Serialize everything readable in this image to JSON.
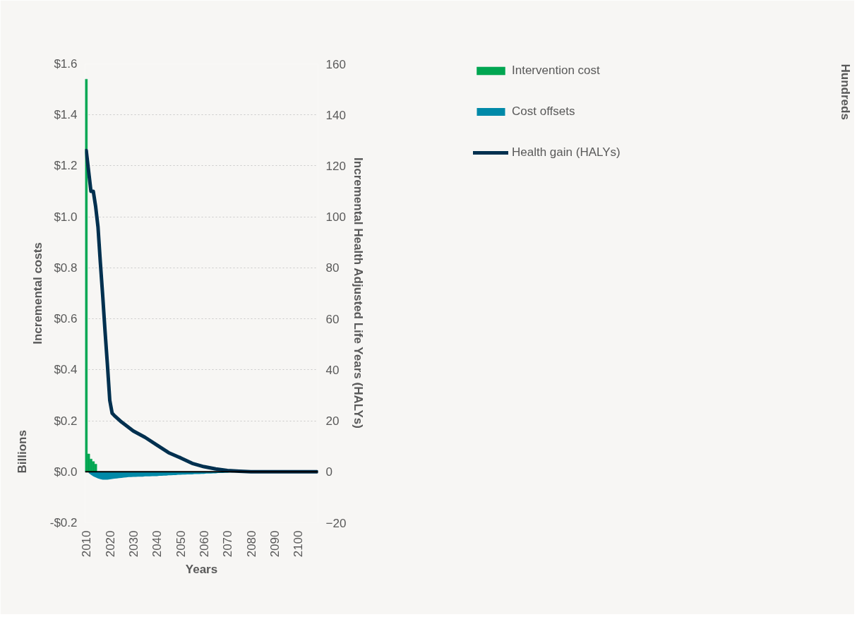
{
  "chart_data": {
    "type": "bar",
    "xlabel": "Years",
    "ylabel": "Incremental costs",
    "y2label": "Incremental Health Adjusted Life Years (HALYs)",
    "annotations": [
      "Billions",
      "Hundreds"
    ],
    "xlim": [
      2009.5,
      2108.5
    ],
    "xticks": [
      2010,
      2020,
      2030,
      2040,
      2050,
      2060,
      2070,
      2080,
      2090,
      2100
    ],
    "ylim": [
      -0.2,
      1.6
    ],
    "yticks": [
      {
        "value": -0.2,
        "label": "-$0.2"
      },
      {
        "value": 0,
        "label": "$0.0"
      },
      {
        "value": 0.2,
        "label": "$0.2"
      },
      {
        "value": 0.4,
        "label": "$0.4"
      },
      {
        "value": 0.6,
        "label": "$0.6"
      },
      {
        "value": 0.8,
        "label": "$0.8"
      },
      {
        "value": 1.0,
        "label": "$1.0"
      },
      {
        "value": 1.2,
        "label": "$1.2"
      },
      {
        "value": 1.4,
        "label": "$1.4"
      },
      {
        "value": 1.6,
        "label": "$1.6"
      }
    ],
    "y2lim": [
      -20,
      160
    ],
    "y2ticks": [
      -20,
      0,
      20,
      40,
      60,
      80,
      100,
      120,
      140,
      160
    ],
    "grid": "y",
    "legend": "right",
    "ref_lines": [
      {
        "axis": "y",
        "value": 0,
        "color": "#000000"
      }
    ],
    "series": [
      {
        "name": "Intervention cost",
        "color": "#00a651",
        "x": [
          2010,
          2011,
          2012,
          2013,
          2014
        ],
        "values": [
          1.54,
          0.07,
          0.05,
          0.04,
          0.03
        ]
      },
      {
        "name": "Cost offsets",
        "type": "area",
        "color": "#0089a8",
        "x": [
          2011,
          2012,
          2013,
          2014,
          2015,
          2016,
          2017,
          2018,
          2019,
          2020,
          2021,
          2022,
          2023,
          2024,
          2025,
          2026,
          2027,
          2028,
          2029,
          2030,
          2031,
          2032,
          2033,
          2034,
          2035,
          2036,
          2037,
          2038,
          2039,
          2040,
          2041,
          2042,
          2043,
          2044,
          2045,
          2046,
          2047,
          2048,
          2049,
          2050,
          2051,
          2052,
          2053,
          2054,
          2055,
          2056,
          2057,
          2058,
          2059,
          2060,
          2061,
          2062,
          2063,
          2064,
          2065,
          2066,
          2067,
          2068,
          2069,
          2070,
          2071,
          2072,
          2073,
          2074,
          2075,
          2076,
          2077,
          2078
        ],
        "values": [
          -0.005,
          -0.012,
          -0.018,
          -0.022,
          -0.026,
          -0.029,
          -0.031,
          -0.031,
          -0.031,
          -0.03,
          -0.028,
          -0.027,
          -0.026,
          -0.025,
          -0.024,
          -0.023,
          -0.022,
          -0.021,
          -0.021,
          -0.02,
          -0.02,
          -0.019,
          -0.019,
          -0.019,
          -0.018,
          -0.018,
          -0.018,
          -0.017,
          -0.017,
          -0.017,
          -0.016,
          -0.016,
          -0.015,
          -0.015,
          -0.014,
          -0.014,
          -0.013,
          -0.013,
          -0.012,
          -0.012,
          -0.011,
          -0.011,
          -0.01,
          -0.01,
          -0.01,
          -0.009,
          -0.009,
          -0.009,
          -0.008,
          -0.008,
          -0.007,
          -0.007,
          -0.007,
          -0.006,
          -0.006,
          -0.005,
          -0.005,
          -0.005,
          -0.004,
          -0.004,
          -0.003,
          -0.003,
          -0.002,
          -0.002,
          -0.002,
          -0.001,
          -0.001,
          -0.001
        ]
      },
      {
        "name": "Health gain (HALYs)",
        "type": "line",
        "axis": "y2",
        "color": "#00304f",
        "x": [
          2010,
          2011,
          2012,
          2013,
          2014,
          2015,
          2016,
          2017,
          2018,
          2019,
          2020,
          2021,
          2022,
          2025,
          2030,
          2035,
          2040,
          2045,
          2050,
          2055,
          2060,
          2065,
          2070,
          2075,
          2080,
          2108
        ],
        "values": [
          126,
          118,
          110,
          110,
          104,
          96,
          82,
          69,
          55,
          42,
          28,
          23,
          22,
          19.5,
          16,
          13.5,
          10.5,
          7.5,
          5.5,
          3.3,
          2,
          1.1,
          0.5,
          0.2,
          0,
          0
        ]
      }
    ]
  }
}
